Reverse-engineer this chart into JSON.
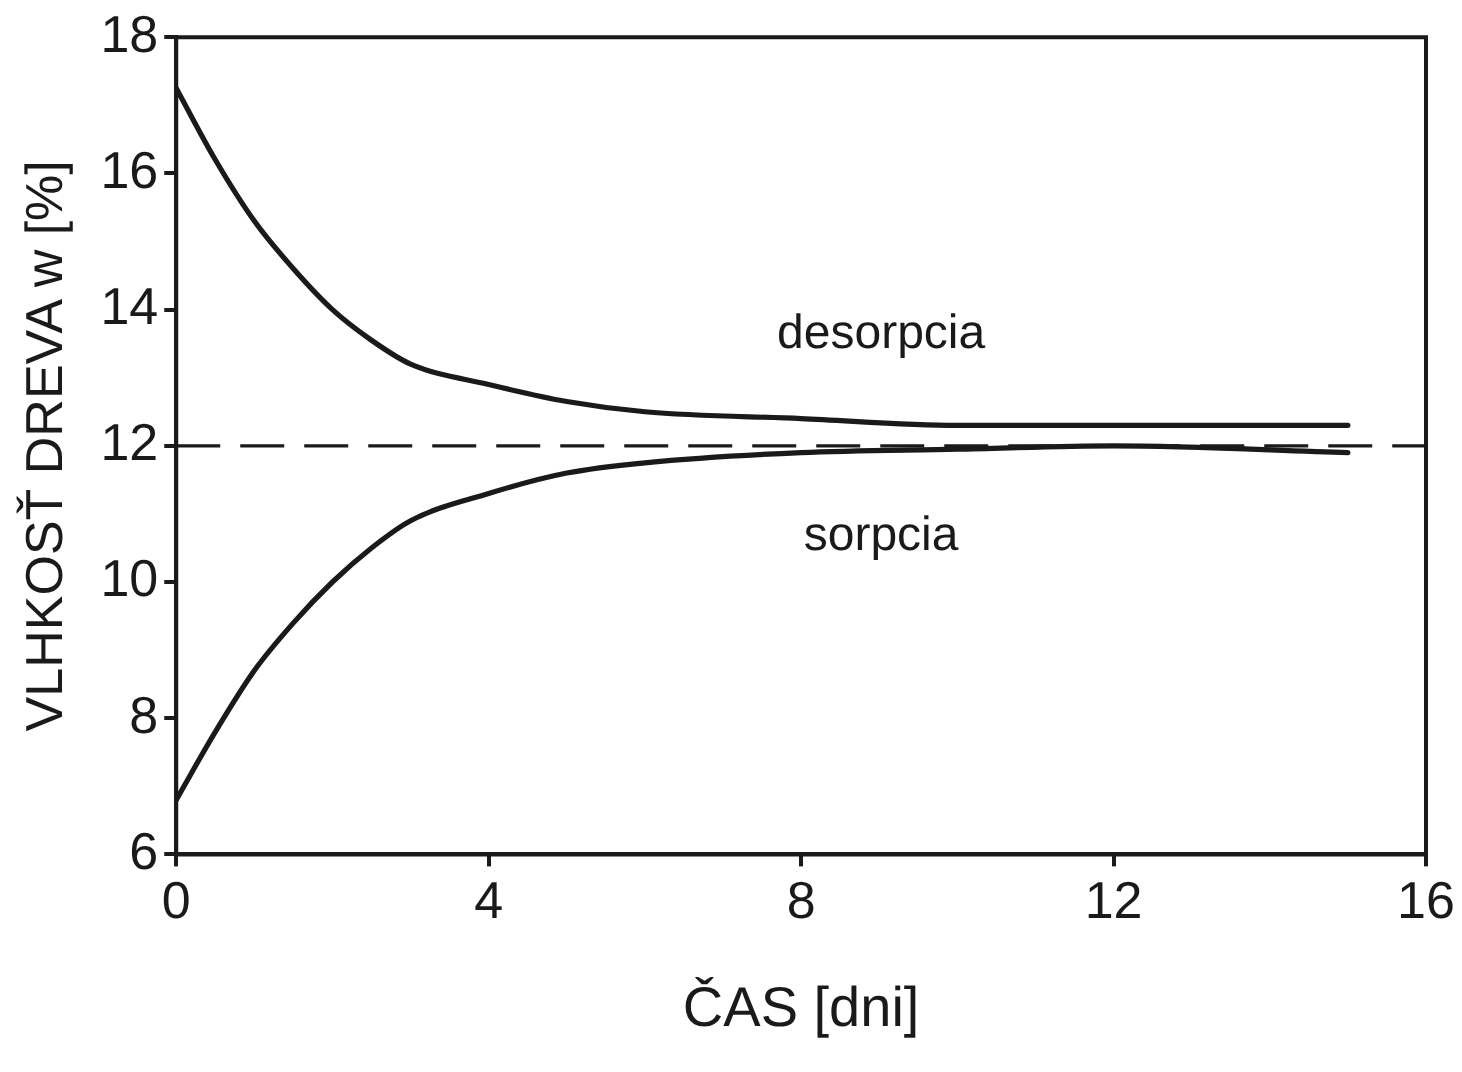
{
  "chart_data": {
    "type": "line",
    "xlabel": "ČAS [dni]",
    "ylabel": "VLHKOSŤ DREVA w [%]",
    "x": [
      0,
      0.5,
      1,
      1.5,
      2,
      2.5,
      3,
      4,
      5,
      6,
      8,
      10,
      12,
      15
    ],
    "series": [
      {
        "name": "desorpcia",
        "color": "#1a1a1a",
        "values": [
          17.25,
          16.2,
          15.3,
          14.6,
          14.0,
          13.55,
          13.2,
          12.9,
          12.65,
          12.5,
          12.4,
          12.3,
          12.3,
          12.3
        ]
      },
      {
        "name": "sorpcia",
        "color": "#1a1a1a",
        "values": [
          6.8,
          7.8,
          8.7,
          9.4,
          10.0,
          10.5,
          10.9,
          11.3,
          11.6,
          11.75,
          11.9,
          11.95,
          12.0,
          11.9
        ]
      }
    ],
    "xlim": [
      0,
      16
    ],
    "xticks": [
      0,
      4,
      8,
      12,
      16
    ],
    "ylim": [
      6,
      18
    ],
    "yticks": [
      6,
      8,
      10,
      12,
      14,
      16,
      18
    ],
    "ref_lines": [
      {
        "axis": "y",
        "value": 12,
        "line_style": "dashed",
        "color": "#1a1a1a"
      }
    ],
    "grid": false,
    "legend": false,
    "marker": "none",
    "line_style": "solid"
  }
}
